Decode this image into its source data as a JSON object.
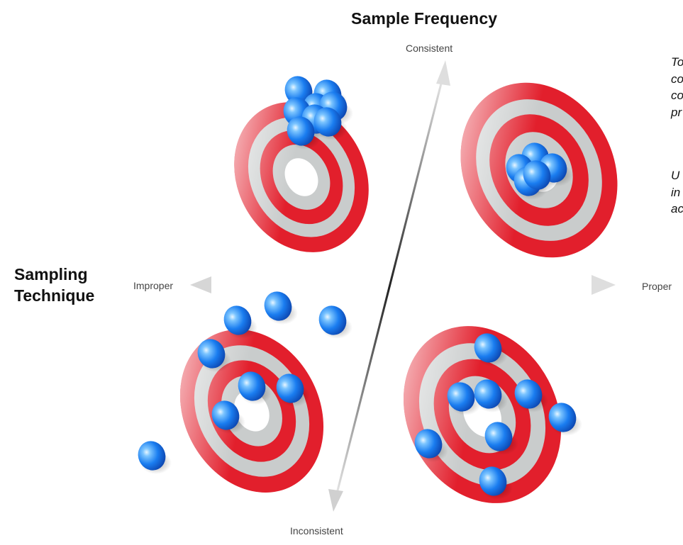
{
  "diagram": {
    "title_frequency": "Sample Frequency",
    "title_technique_line1": "Sampling",
    "title_technique_line2": "Technique",
    "axis": {
      "top": "Consistent",
      "bottom": "Inconsistent",
      "left": "Improper",
      "right": "Proper"
    },
    "side_text": {
      "para1": [
        "To",
        "co",
        "co",
        "pr"
      ],
      "para2": [
        "U",
        "in",
        "ac"
      ]
    },
    "colors": {
      "target_red": "#e21f2c",
      "target_grey": "#c9cccc",
      "dot_blue": "#1a7df0",
      "axis_grey": "#bdbdbd"
    },
    "quadrants": [
      {
        "position": "top-left",
        "description_icon": "target-icon",
        "dot_count": 8
      },
      {
        "position": "top-right",
        "description_icon": "target-icon",
        "dot_count": 5
      },
      {
        "position": "bottom-left",
        "description_icon": "target-icon",
        "dot_count": 8
      },
      {
        "position": "bottom-right",
        "description_icon": "target-icon",
        "dot_count": 8
      }
    ]
  }
}
